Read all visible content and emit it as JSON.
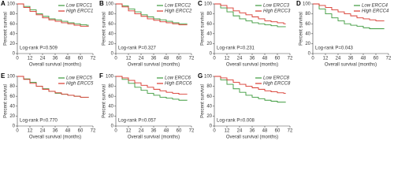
{
  "chart_data": [
    {
      "type": "line",
      "panel_label": "A",
      "drawstyle": "steps-post",
      "legend": "upper right",
      "annotation": "Log-rank P=0.509",
      "x_label": "Overall survival (months)",
      "y_label": "Percent survival",
      "x": [
        0,
        6,
        12,
        18,
        24,
        30,
        36,
        42,
        48,
        54,
        60,
        66
      ],
      "series": [
        {
          "name": "Low ERCC1",
          "color": "#3c9a3c",
          "values": [
            100,
            95,
            88,
            80,
            75,
            70,
            68,
            65,
            62,
            60,
            58,
            57
          ]
        },
        {
          "name": "High ERCC1",
          "color": "#d8372d",
          "values": [
            100,
            93,
            85,
            78,
            72,
            68,
            65,
            62,
            60,
            57,
            55,
            55
          ]
        }
      ],
      "xlim": [
        0,
        72
      ],
      "xticks": [
        0,
        12,
        24,
        36,
        48,
        60,
        72
      ],
      "ylim": [
        0,
        100
      ],
      "yticks": [
        0,
        20,
        40,
        60,
        80,
        100
      ]
    },
    {
      "type": "line",
      "panel_label": "B",
      "drawstyle": "steps-post",
      "legend": "upper right",
      "annotation": "Log-rank P=0.327",
      "x_label": "Overall survival (months)",
      "y_label": "Percent survival",
      "x": [
        0,
        6,
        12,
        18,
        24,
        30,
        36,
        42,
        48,
        54,
        60,
        66
      ],
      "series": [
        {
          "name": "Low ERCC2",
          "color": "#3c9a3c",
          "values": [
            100,
            96,
            90,
            84,
            78,
            74,
            70,
            68,
            65,
            62,
            60,
            60
          ]
        },
        {
          "name": "High ERCC2",
          "color": "#d8372d",
          "values": [
            100,
            94,
            86,
            80,
            75,
            70,
            67,
            64,
            62,
            60,
            58,
            58
          ]
        }
      ],
      "xlim": [
        0,
        72
      ],
      "xticks": [
        0,
        12,
        24,
        36,
        48,
        60,
        72
      ],
      "ylim": [
        0,
        100
      ],
      "yticks": [
        0,
        20,
        40,
        60,
        80,
        100
      ]
    },
    {
      "type": "line",
      "panel_label": "C",
      "drawstyle": "steps-post",
      "legend": "upper right",
      "annotation": "Log-rank P=0.231",
      "x_label": "Overall survival (months)",
      "y_label": "Percent survival",
      "x": [
        0,
        6,
        12,
        18,
        24,
        30,
        36,
        42,
        48,
        54,
        60,
        66
      ],
      "series": [
        {
          "name": "Low ERCC3",
          "color": "#3c9a3c",
          "values": [
            100,
            92,
            84,
            76,
            70,
            66,
            62,
            60,
            58,
            56,
            54,
            54
          ]
        },
        {
          "name": "High ERCC3",
          "color": "#d8372d",
          "values": [
            100,
            97,
            92,
            86,
            82,
            78,
            74,
            70,
            66,
            64,
            62,
            60
          ]
        }
      ],
      "xlim": [
        0,
        72
      ],
      "xticks": [
        0,
        12,
        24,
        36,
        48,
        60,
        72
      ],
      "ylim": [
        0,
        100
      ],
      "yticks": [
        0,
        20,
        40,
        60,
        80,
        100
      ]
    },
    {
      "type": "line",
      "panel_label": "D",
      "drawstyle": "steps-post",
      "legend": "upper right",
      "annotation": "Log-rank P=0.043",
      "x_label": "Overall survival (months)",
      "y_label": "Percent survival",
      "x": [
        0,
        6,
        12,
        18,
        24,
        30,
        36,
        42,
        48,
        54,
        60,
        66
      ],
      "series": [
        {
          "name": "Low ERCC4",
          "color": "#3c9a3c",
          "values": [
            100,
            90,
            80,
            72,
            66,
            60,
            57,
            55,
            52,
            50,
            50,
            50
          ]
        },
        {
          "name": "High ERCC4",
          "color": "#d8372d",
          "values": [
            100,
            97,
            93,
            88,
            84,
            80,
            76,
            72,
            70,
            68,
            66,
            66
          ]
        }
      ],
      "xlim": [
        0,
        72
      ],
      "xticks": [
        0,
        12,
        24,
        36,
        48,
        60,
        72
      ],
      "ylim": [
        0,
        100
      ],
      "yticks": [
        0,
        20,
        40,
        60,
        80,
        100
      ]
    },
    {
      "type": "line",
      "panel_label": "E",
      "drawstyle": "steps-post",
      "legend": "upper right",
      "annotation": "Log-rank P=0.770",
      "x_label": "Overall survival (months)",
      "y_label": "Percent survival",
      "x": [
        0,
        6,
        12,
        18,
        24,
        30,
        36,
        42,
        48,
        54,
        60,
        66
      ],
      "series": [
        {
          "name": "Low ERCC5",
          "color": "#3c9a3c",
          "values": [
            100,
            95,
            88,
            80,
            75,
            70,
            66,
            64,
            62,
            60,
            58,
            58
          ]
        },
        {
          "name": "High ERCC5",
          "color": "#d8372d",
          "values": [
            100,
            94,
            86,
            80,
            74,
            70,
            67,
            64,
            62,
            60,
            58,
            58
          ]
        }
      ],
      "xlim": [
        0,
        72
      ],
      "xticks": [
        0,
        12,
        24,
        36,
        48,
        60,
        72
      ],
      "ylim": [
        0,
        100
      ],
      "yticks": [
        0,
        20,
        40,
        60,
        80,
        100
      ]
    },
    {
      "type": "line",
      "panel_label": "F",
      "drawstyle": "steps-post",
      "legend": "upper right",
      "annotation": "Log-rank P=0.057",
      "x_label": "Overall survival (months)",
      "y_label": "Percent survival",
      "x": [
        0,
        6,
        12,
        18,
        24,
        30,
        36,
        42,
        48,
        54,
        60,
        66
      ],
      "series": [
        {
          "name": "Low ERCC6",
          "color": "#3c9a3c",
          "values": [
            100,
            94,
            86,
            78,
            72,
            66,
            62,
            58,
            56,
            54,
            52,
            52
          ]
        },
        {
          "name": "High ERCC6",
          "color": "#d8372d",
          "values": [
            100,
            97,
            92,
            87,
            82,
            78,
            74,
            71,
            68,
            66,
            64,
            64
          ]
        }
      ],
      "xlim": [
        0,
        72
      ],
      "xticks": [
        0,
        12,
        24,
        36,
        48,
        60,
        72
      ],
      "ylim": [
        0,
        100
      ],
      "yticks": [
        0,
        20,
        40,
        60,
        80,
        100
      ]
    },
    {
      "type": "line",
      "panel_label": "G",
      "drawstyle": "steps-post",
      "legend": "upper right",
      "annotation": "Log-rank P=0.008",
      "x_label": "Overall survival (months)",
      "y_label": "Percent survival",
      "x": [
        0,
        6,
        12,
        18,
        24,
        30,
        36,
        42,
        48,
        54,
        60,
        66
      ],
      "series": [
        {
          "name": "Low ERCC8",
          "color": "#3c9a3c",
          "values": [
            100,
            93,
            84,
            75,
            68,
            62,
            58,
            55,
            52,
            50,
            48,
            48
          ]
        },
        {
          "name": "High ERCC8",
          "color": "#d8372d",
          "values": [
            100,
            97,
            93,
            88,
            84,
            80,
            77,
            74,
            71,
            69,
            67,
            66
          ]
        }
      ],
      "xlim": [
        0,
        72
      ],
      "xticks": [
        0,
        12,
        24,
        36,
        48,
        60,
        72
      ],
      "ylim": [
        0,
        100
      ],
      "yticks": [
        0,
        20,
        40,
        60,
        80,
        100
      ]
    }
  ]
}
